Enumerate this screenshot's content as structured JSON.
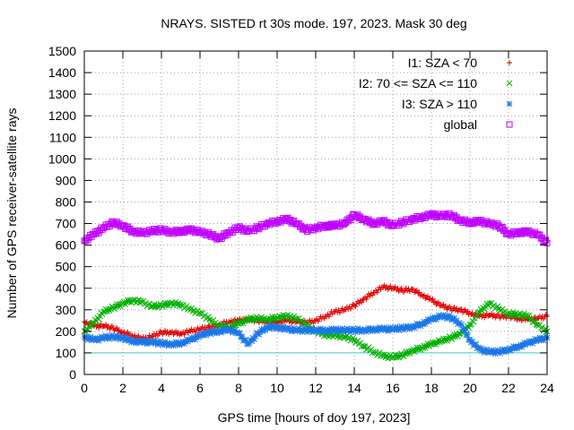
{
  "chart_data": {
    "type": "scatter",
    "title": "NRAYS. SISTED rt 30s mode. 197, 2023. Mask 30 deg",
    "xlabel": "GPS time [hours of doy 197, 2023]",
    "ylabel": "Number of GPS receiver-satellite rays",
    "xlim": [
      0,
      24
    ],
    "ylim": [
      0,
      1500
    ],
    "x_ticks": [
      "0",
      "2",
      "4",
      "6",
      "8",
      "10",
      "12",
      "14",
      "16",
      "18",
      "20",
      "22",
      "24"
    ],
    "y_ticks": [
      "0",
      "100",
      "200",
      "300",
      "400",
      "500",
      "600",
      "700",
      "800",
      "900",
      "1000",
      "1100",
      "1200",
      "1300",
      "1400",
      "1500"
    ],
    "reference_line": {
      "y": 100,
      "color": "#40d0d0"
    },
    "legend_position": "top-right",
    "series": [
      {
        "name": "I1: SZA < 70",
        "marker": "+",
        "color": "#e00000",
        "x": [
          0,
          0.5,
          1,
          1.5,
          2,
          2.5,
          3,
          3.5,
          4,
          4.5,
          5,
          5.5,
          6,
          6.5,
          7,
          7.5,
          8,
          8.5,
          9,
          9.5,
          10,
          10.5,
          11,
          11.5,
          12,
          12.5,
          13,
          13.5,
          14,
          14.5,
          15,
          15.5,
          16,
          16.5,
          17,
          17.5,
          18,
          18.5,
          19,
          19.5,
          20,
          20.5,
          21,
          21.5,
          22,
          22.5,
          23,
          23.5,
          24
        ],
        "y": [
          245,
          225,
          225,
          215,
          195,
          180,
          165,
          175,
          195,
          195,
          190,
          200,
          210,
          220,
          230,
          245,
          250,
          255,
          250,
          245,
          245,
          250,
          245,
          240,
          250,
          270,
          290,
          300,
          320,
          350,
          380,
          405,
          400,
          390,
          395,
          370,
          345,
          320,
          305,
          300,
          285,
          270,
          275,
          270,
          270,
          260,
          255,
          260,
          270
        ]
      },
      {
        "name": "I2: 70 <= SZA <= 110",
        "marker": "x",
        "color": "#00b000",
        "x": [
          0,
          0.5,
          1,
          1.5,
          2,
          2.5,
          3,
          3.5,
          4,
          4.5,
          5,
          5.5,
          6,
          6.5,
          7,
          7.5,
          8,
          8.5,
          9,
          9.5,
          10,
          10.5,
          11,
          11.5,
          12,
          12.5,
          13,
          13.5,
          14,
          14.5,
          15,
          15.5,
          16,
          16.5,
          17,
          17.5,
          18,
          18.5,
          19,
          19.5,
          20,
          20.5,
          21,
          21.5,
          22,
          22.5,
          23,
          23.5,
          24
        ],
        "y": [
          200,
          240,
          290,
          310,
          330,
          345,
          335,
          315,
          320,
          330,
          325,
          300,
          285,
          255,
          225,
          220,
          235,
          255,
          260,
          255,
          265,
          270,
          260,
          230,
          200,
          185,
          180,
          175,
          160,
          130,
          105,
          85,
          80,
          90,
          110,
          125,
          140,
          155,
          170,
          190,
          230,
          290,
          330,
          305,
          280,
          280,
          270,
          230,
          200
        ]
      },
      {
        "name": "I3: SZA > 110",
        "marker": "*",
        "color": "#1a78e8",
        "x": [
          0,
          0.5,
          1,
          1.5,
          2,
          2.5,
          3,
          3.5,
          4,
          4.5,
          5,
          5.5,
          6,
          6.5,
          7,
          7.5,
          8,
          8.5,
          9,
          9.5,
          10,
          10.5,
          11,
          11.5,
          12,
          12.5,
          13,
          13.5,
          14,
          14.5,
          15,
          15.5,
          16,
          16.5,
          17,
          17.5,
          18,
          18.5,
          19,
          19.5,
          20,
          20.5,
          21,
          21.5,
          22,
          22.5,
          23,
          23.5,
          24
        ],
        "y": [
          175,
          160,
          170,
          175,
          170,
          155,
          150,
          150,
          145,
          140,
          145,
          160,
          180,
          195,
          200,
          210,
          190,
          140,
          190,
          220,
          220,
          210,
          205,
          205,
          205,
          205,
          205,
          205,
          205,
          205,
          210,
          210,
          210,
          215,
          220,
          235,
          255,
          270,
          265,
          235,
          160,
          115,
          105,
          105,
          115,
          130,
          145,
          160,
          170
        ]
      },
      {
        "name": "global",
        "marker": "square",
        "color": "#c000ff",
        "x": [
          0,
          0.5,
          1,
          1.5,
          2,
          2.5,
          3,
          3.5,
          4,
          4.5,
          5,
          5.5,
          6,
          6.5,
          7,
          7.5,
          8,
          8.5,
          9,
          9.5,
          10,
          10.5,
          11,
          11.5,
          12,
          12.5,
          13,
          13.5,
          14,
          14.5,
          15,
          15.5,
          16,
          16.5,
          17,
          17.5,
          18,
          18.5,
          19,
          19.5,
          20,
          20.5,
          21,
          21.5,
          22,
          22.5,
          23,
          23.5,
          24
        ],
        "y": [
          620,
          650,
          680,
          705,
          690,
          665,
          655,
          665,
          670,
          660,
          665,
          670,
          660,
          650,
          630,
          660,
          680,
          665,
          680,
          700,
          710,
          720,
          700,
          670,
          680,
          690,
          690,
          700,
          740,
          720,
          700,
          710,
          690,
          705,
          720,
          730,
          740,
          735,
          740,
          715,
          705,
          710,
          700,
          690,
          650,
          660,
          660,
          650,
          610
        ]
      }
    ]
  }
}
